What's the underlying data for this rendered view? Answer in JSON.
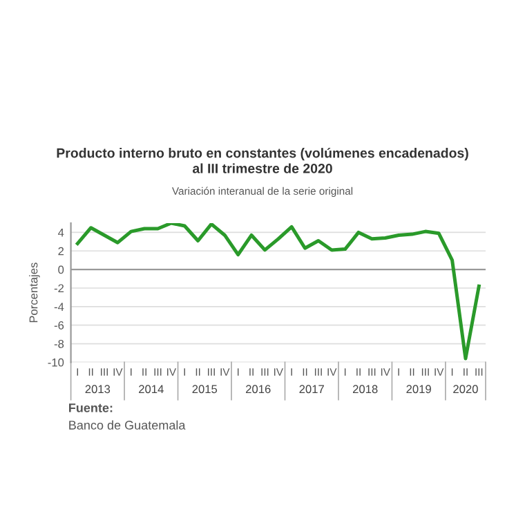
{
  "chart_data": {
    "type": "line",
    "title": "Producto interno bruto en constantes (volúmenes encadenados)\nal III trimestre de 2020",
    "subtitle": "Variación interanual de la serie original",
    "ylabel": "Porcentajes",
    "categories": [
      "I",
      "II",
      "III",
      "IV",
      "I",
      "II",
      "III",
      "IV",
      "I",
      "II",
      "III",
      "IV",
      "I",
      "II",
      "III",
      "IV",
      "I",
      "II",
      "III",
      "IV",
      "I",
      "II",
      "III",
      "IV",
      "I",
      "II",
      "III",
      "IV",
      "I",
      "II",
      "III"
    ],
    "series": [
      {
        "color": "#2a9a2a",
        "values": [
          2.8,
          4.5,
          3.7,
          2.9,
          4.1,
          4.4,
          4.4,
          5.0,
          4.7,
          3.1,
          4.9,
          3.7,
          1.6,
          3.7,
          2.1,
          3.3,
          4.6,
          2.3,
          3.1,
          2.1,
          2.2,
          4.0,
          3.3,
          3.4,
          3.7,
          3.8,
          4.1,
          3.9,
          1.0,
          -9.6,
          -1.8
        ]
      }
    ],
    "ylim": [
      -10,
      5
    ],
    "yticks": [
      -10,
      -8,
      -6,
      -4,
      -2,
      0,
      2,
      4
    ],
    "grid": "y",
    "marker": "none",
    "line_style": "solid",
    "annotations": [
      "2013",
      "2014",
      "2015",
      "2016",
      "2017",
      "2018",
      "2019",
      "2020",
      "Fuente:",
      "Banco de Guatemala"
    ]
  }
}
